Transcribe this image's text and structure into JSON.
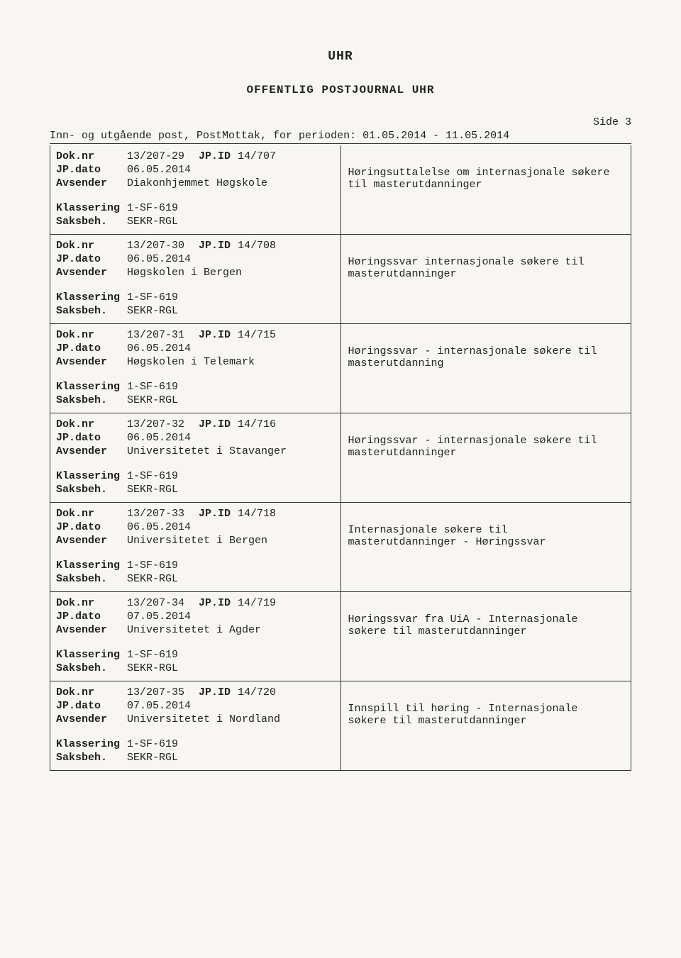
{
  "header": {
    "org": "UHR",
    "title": "OFFENTLIG POSTJOURNAL UHR",
    "side_label": "Side 3",
    "intro": "Inn- og utgående post, PostMottak, for perioden: 01.05.2014 - 11.05.2014"
  },
  "labels": {
    "doknr": "Dok.nr",
    "jpid": "JP.ID",
    "jpdato": "JP.dato",
    "avsender": "Avsender",
    "klassering": "Klassering",
    "saksbeh": "Saksbeh."
  },
  "entries": [
    {
      "doknr": "13/207-29",
      "jpid": "14/707",
      "jpdato": "06.05.2014",
      "avsender": "Diakonhjemmet Høgskole",
      "klassering": "1-SF-619",
      "saksbeh": "SEKR-RGL",
      "desc": "Høringsuttalelse om internasjonale søkere til masterutdanninger"
    },
    {
      "doknr": "13/207-30",
      "jpid": "14/708",
      "jpdato": "06.05.2014",
      "avsender": "Høgskolen i Bergen",
      "klassering": "1-SF-619",
      "saksbeh": "SEKR-RGL",
      "desc": "Høringssvar internasjonale søkere til masterutdanninger"
    },
    {
      "doknr": "13/207-31",
      "jpid": "14/715",
      "jpdato": "06.05.2014",
      "avsender": "Høgskolen i Telemark",
      "klassering": "1-SF-619",
      "saksbeh": "SEKR-RGL",
      "desc": "Høringssvar - internasjonale søkere til masterutdanning"
    },
    {
      "doknr": "13/207-32",
      "jpid": "14/716",
      "jpdato": "06.05.2014",
      "avsender": "Universitetet i Stavanger",
      "klassering": "1-SF-619",
      "saksbeh": "SEKR-RGL",
      "desc": "Høringssvar - internasjonale søkere til masterutdanninger"
    },
    {
      "doknr": "13/207-33",
      "jpid": "14/718",
      "jpdato": "06.05.2014",
      "avsender": "Universitetet i Bergen",
      "klassering": "1-SF-619",
      "saksbeh": "SEKR-RGL",
      "desc": "Internasjonale søkere til masterutdanninger - Høringssvar"
    },
    {
      "doknr": "13/207-34",
      "jpid": "14/719",
      "jpdato": "07.05.2014",
      "avsender": "Universitetet i Agder",
      "klassering": "1-SF-619",
      "saksbeh": "SEKR-RGL",
      "desc": "Høringssvar fra UiA - Internasjonale søkere til masterutdanninger"
    },
    {
      "doknr": "13/207-35",
      "jpid": "14/720",
      "jpdato": "07.05.2014",
      "avsender": "Universitetet i Nordland",
      "klassering": "1-SF-619",
      "saksbeh": "SEKR-RGL",
      "desc": "Innspill til høring - Internasjonale søkere til masterutdanninger"
    }
  ],
  "style": {
    "page_bg": "#f7f6f3",
    "text_color": "#222",
    "border_color": "#333",
    "font_family": "Courier New",
    "title_fontsize": 18,
    "subtitle_fontsize": 16,
    "body_fontsize": 15
  }
}
